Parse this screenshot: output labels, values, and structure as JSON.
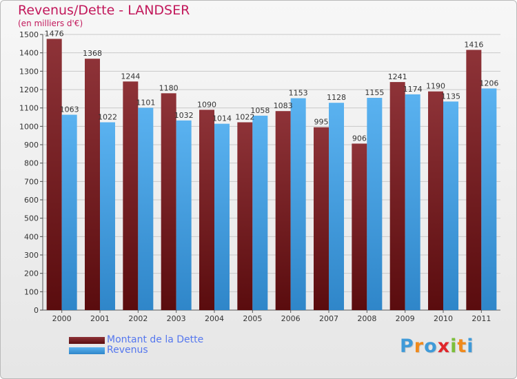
{
  "header": {
    "title": "Revenus/Dette - LANDSER",
    "subtitle": "(en milliers d'€)"
  },
  "chart_data": {
    "type": "bar",
    "title": "Revenus/Dette - LANDSER",
    "subtitle": "(en milliers d'€)",
    "xlabel": "",
    "ylabel": "",
    "ylim": [
      0,
      1500
    ],
    "yticks": [
      0,
      100,
      200,
      300,
      400,
      500,
      600,
      700,
      800,
      900,
      1000,
      1100,
      1200,
      1300,
      1400,
      1500
    ],
    "categories": [
      "2000",
      "2001",
      "2002",
      "2003",
      "2004",
      "2005",
      "2006",
      "2007",
      "2008",
      "2009",
      "2010",
      "2011"
    ],
    "series": [
      {
        "name": "Montant de la Dette",
        "color": "#7a1f22",
        "values": [
          1476,
          1368,
          1244,
          1180,
          1090,
          1022,
          1083,
          995,
          906,
          1241,
          1190,
          1416
        ]
      },
      {
        "name": "Revenus",
        "color": "#4da6e8",
        "values": [
          1063,
          1022,
          1101,
          1032,
          1014,
          1058,
          1153,
          1128,
          1155,
          1174,
          1135,
          1206
        ]
      }
    ],
    "grid": true,
    "legend": "bottom-left",
    "data_labels": true
  },
  "legend": {
    "items": [
      {
        "label": "Montant de la Dette",
        "color": "#7a1f22"
      },
      {
        "label": "Revenus",
        "color": "#4da6e8"
      }
    ]
  },
  "logo": {
    "letters": [
      {
        "ch": "P",
        "color": "#3f9ad8"
      },
      {
        "ch": "r",
        "color": "#f08a1c"
      },
      {
        "ch": "o",
        "color": "#3f9ad8"
      },
      {
        "ch": "x",
        "color": "#e0262b"
      },
      {
        "ch": "i",
        "color": "#7cbf3a"
      },
      {
        "ch": "t",
        "color": "#f08a1c"
      },
      {
        "ch": "i",
        "color": "#3f9ad8"
      }
    ]
  }
}
